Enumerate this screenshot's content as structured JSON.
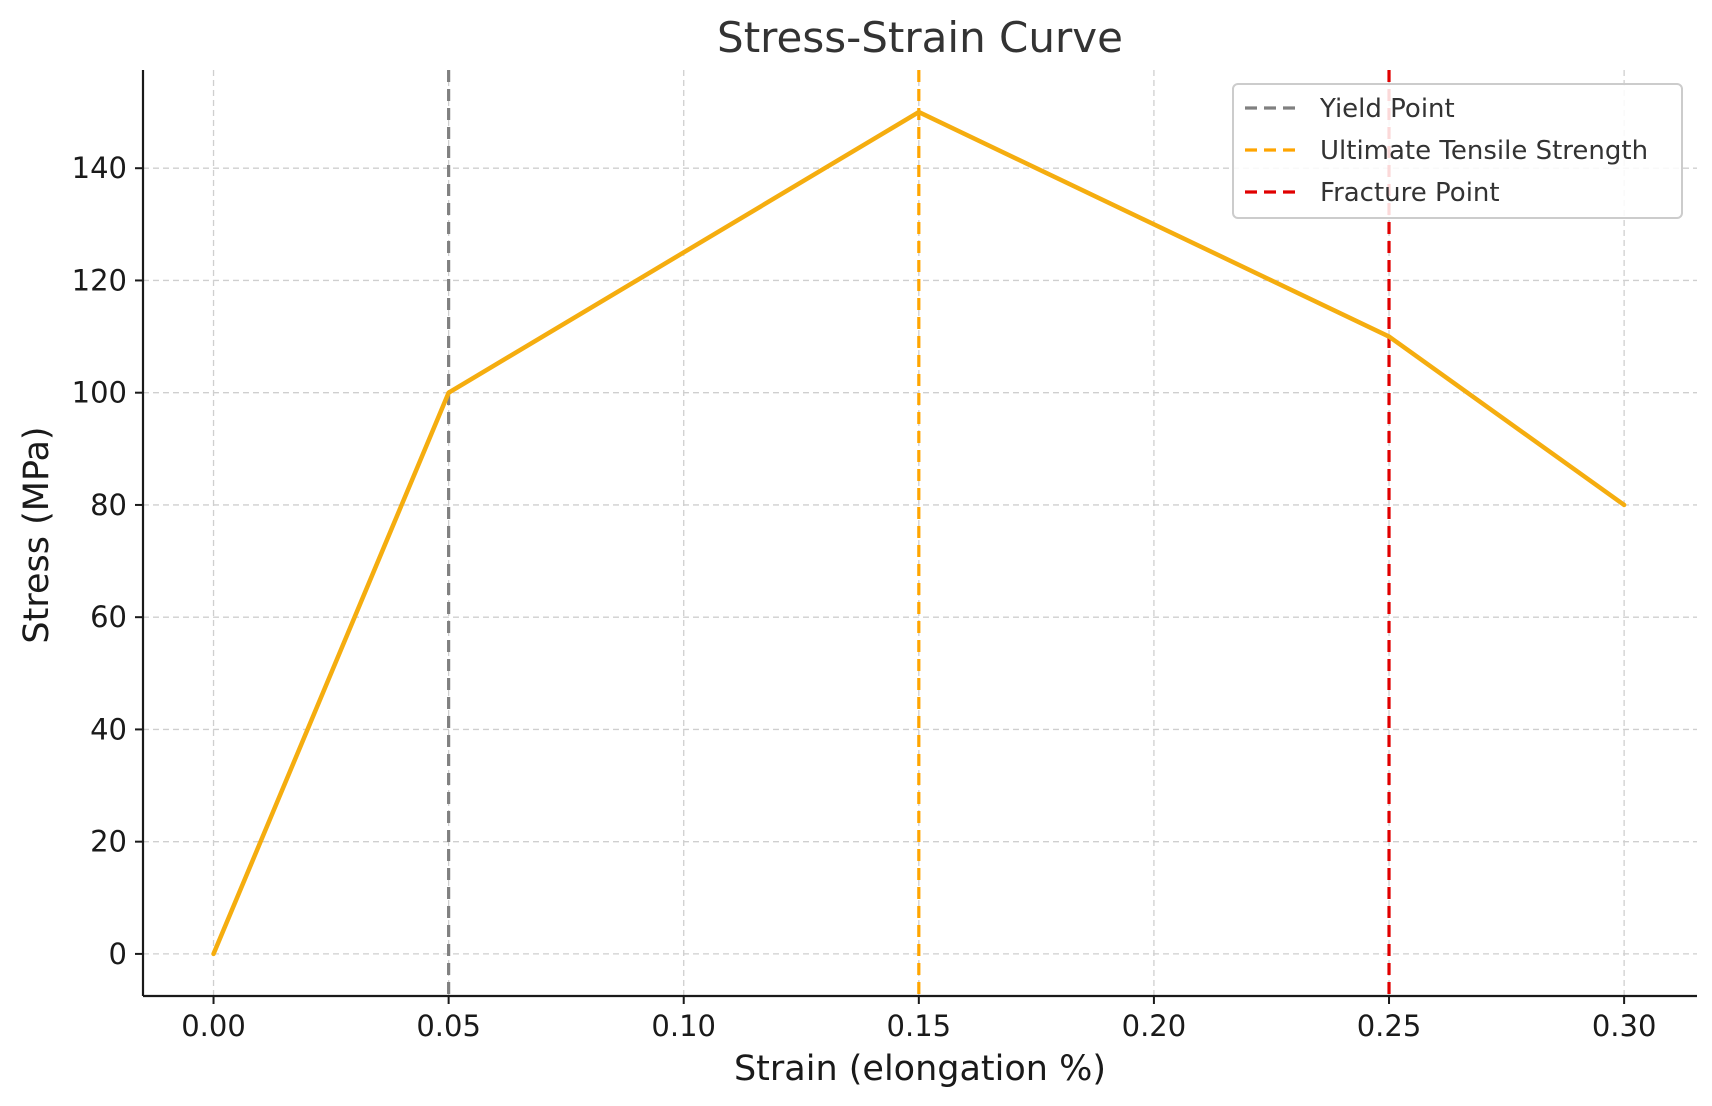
{
  "chart_data": {
    "type": "line",
    "title": "Stress-Strain Curve",
    "xlabel": "Strain (elongation %)",
    "ylabel": "Stress (MPa)",
    "xlim": [
      -0.015,
      0.3155
    ],
    "ylim": [
      -7.5,
      157.5
    ],
    "x_ticks": [
      0.0,
      0.05,
      0.1,
      0.15,
      0.2,
      0.25,
      0.3
    ],
    "x_tick_labels": [
      "0.00",
      "0.05",
      "0.10",
      "0.15",
      "0.20",
      "0.25",
      "0.30"
    ],
    "y_ticks": [
      0,
      20,
      40,
      60,
      80,
      100,
      120,
      140
    ],
    "y_tick_labels": [
      "0",
      "20",
      "40",
      "60",
      "80",
      "100",
      "120",
      "140"
    ],
    "grid": true,
    "legend_position": "top-right",
    "series": [
      {
        "color": "#f5ad0f",
        "x": [
          0.0,
          0.05,
          0.15,
          0.25,
          0.3
        ],
        "y": [
          0,
          100,
          150,
          110,
          80
        ]
      }
    ],
    "reference_lines": [
      {
        "name": "Yield Point",
        "x": 0.05,
        "color": "#808080",
        "style": "dashed"
      },
      {
        "name": "Ultimate Tensile Strength",
        "x": 0.15,
        "color": "#ffa500",
        "style": "dashed"
      },
      {
        "name": "Fracture Point",
        "x": 0.25,
        "color": "#e00000",
        "style": "dashed"
      }
    ]
  }
}
